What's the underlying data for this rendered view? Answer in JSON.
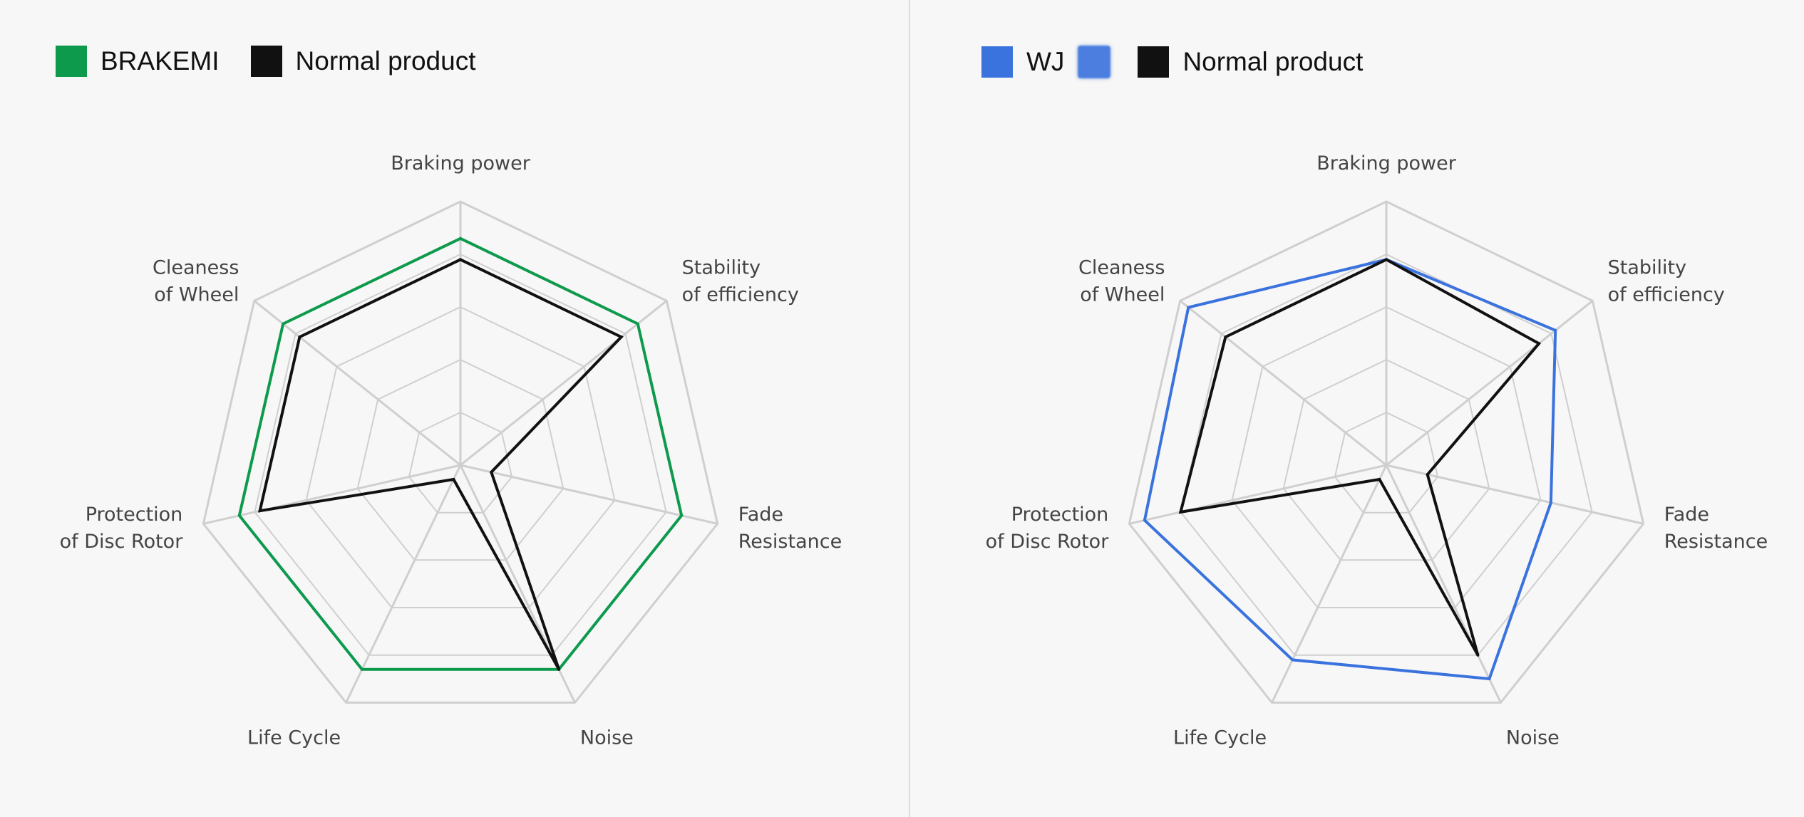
{
  "colors": {
    "background": "#f7f7f7",
    "grid": "#cfcfcf",
    "divider": "#dcdcdc",
    "brakemi": "#0e9a4c",
    "wj": "#3a72de",
    "normal": "#111111"
  },
  "chart_data": [
    {
      "type": "radar",
      "title": "",
      "legend_position": "top-left",
      "grid": true,
      "rings": 5,
      "range": [
        0,
        5
      ],
      "axes": [
        {
          "label": [
            "Braking power"
          ]
        },
        {
          "label": [
            "Stability",
            "of efficiency"
          ]
        },
        {
          "label": [
            "Fade",
            "Resistance"
          ]
        },
        {
          "label": [
            "Noise"
          ]
        },
        {
          "label": [
            "Life Cycle"
          ]
        },
        {
          "label": [
            "Protection",
            "of Disc Rotor"
          ]
        },
        {
          "label": [
            "Cleaness",
            "of Wheel"
          ]
        }
      ],
      "series": [
        {
          "name": "BRAKEMI",
          "color": "#0e9a4c",
          "values": [
            4.3,
            4.3,
            4.3,
            4.3,
            4.3,
            4.3,
            4.3
          ]
        },
        {
          "name": "Normal product",
          "color": "#111111",
          "values": [
            3.9,
            3.9,
            0.6,
            4.3,
            0.3,
            3.9,
            3.9
          ]
        }
      ]
    },
    {
      "type": "radar",
      "title": "",
      "legend_position": "top-left",
      "grid": true,
      "rings": 5,
      "range": [
        0,
        5
      ],
      "axes": [
        {
          "label": [
            "Braking power"
          ]
        },
        {
          "label": [
            "Stability",
            "of efficiency"
          ]
        },
        {
          "label": [
            "Fade",
            "Resistance"
          ]
        },
        {
          "label": [
            "Noise"
          ]
        },
        {
          "label": [
            "Life Cycle"
          ]
        },
        {
          "label": [
            "Protection",
            "of Disc Rotor"
          ]
        },
        {
          "label": [
            "Cleaness",
            "of Wheel"
          ]
        }
      ],
      "series": [
        {
          "name": "WJ",
          "color": "#3a72de",
          "values": [
            3.9,
            4.1,
            3.2,
            4.5,
            4.1,
            4.7,
            4.8
          ]
        },
        {
          "name": "Normal product",
          "color": "#111111",
          "values": [
            3.9,
            3.7,
            0.8,
            4.0,
            0.3,
            4.0,
            3.9
          ]
        }
      ]
    }
  ]
}
